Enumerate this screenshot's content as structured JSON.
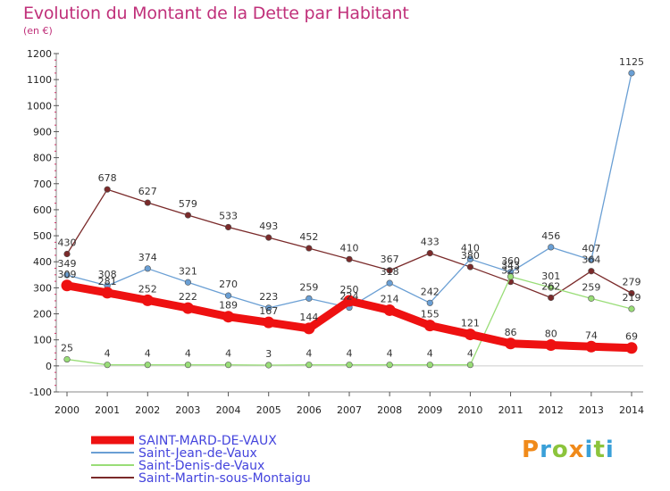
{
  "chart_data": {
    "type": "line",
    "title": "Evolution du Montant de la Dette par Habitant",
    "ylabel": "(en €)",
    "x": [
      2000,
      2001,
      2002,
      2003,
      2004,
      2005,
      2006,
      2007,
      2008,
      2009,
      2010,
      2011,
      2012,
      2013,
      2014
    ],
    "ylim": [
      -100,
      1200
    ],
    "yticks": [
      -100,
      0,
      100,
      200,
      300,
      400,
      500,
      600,
      700,
      800,
      900,
      1000,
      1100,
      1200
    ],
    "grid": false,
    "legend_position": "bottom-left",
    "series": [
      {
        "name": "SAINT-MARD-DE-VAUX",
        "color": "#ee1111",
        "values": [
          309,
          281,
          252,
          222,
          189,
          167,
          144,
          250,
          214,
          155,
          121,
          86,
          80,
          74,
          69
        ]
      },
      {
        "name": "Saint-Jean-de-Vaux",
        "color": "#6a9fd4",
        "values": [
          349,
          308,
          374,
          321,
          270,
          223,
          259,
          224,
          318,
          242,
          410,
          360,
          456,
          407,
          1125
        ]
      },
      {
        "name": "Saint-Denis-de-Vaux",
        "color": "#99dd77",
        "values": [
          25,
          4,
          4,
          4,
          4,
          3,
          4,
          4,
          4,
          4,
          4,
          343,
          301,
          259,
          219
        ]
      },
      {
        "name": "Saint-Martin-sous-Montaigu",
        "color": "#7a2a2a",
        "values": [
          430,
          678,
          627,
          579,
          533,
          493,
          452,
          410,
          367,
          433,
          380,
          323,
          262,
          364,
          279
        ]
      }
    ]
  },
  "brand": {
    "letters": [
      "P",
      "r",
      "o",
      "x",
      "i",
      "t",
      "i"
    ],
    "colors": [
      "#f08a1a",
      "#3aa0d8",
      "#8cc43c",
      "#f08a1a",
      "#3aa0d8",
      "#8cc43c",
      "#3aa0d8"
    ]
  }
}
